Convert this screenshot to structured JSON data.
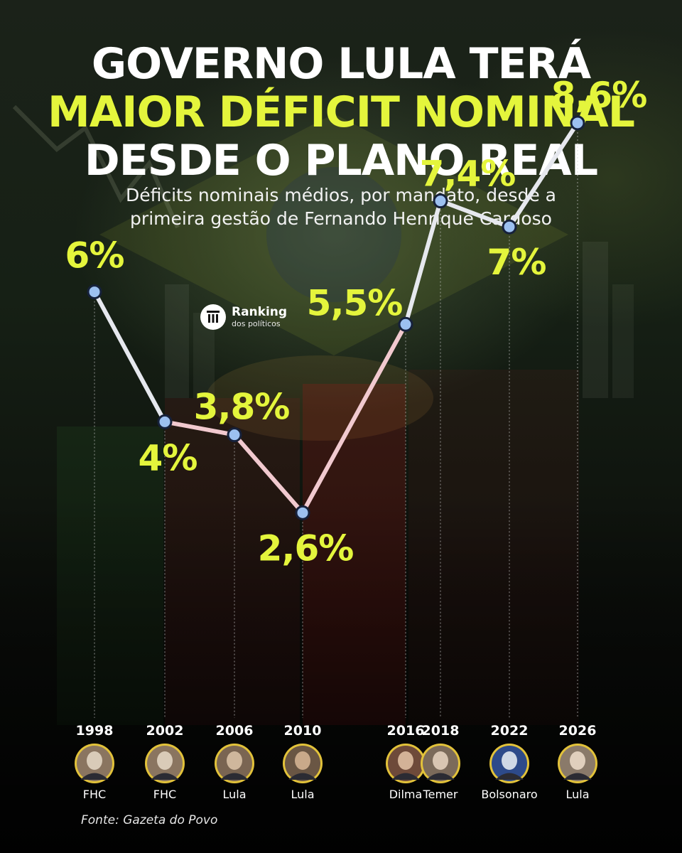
{
  "header": {
    "title_line1": "GOVERNO LULA TERÁ",
    "title_line2": "MAIOR DÉFICIT NOMINAL",
    "title_line3": "DESDE O PLANO REAL",
    "subtitle_line1": "Déficits  nominais médios, por mandato, desde a",
    "subtitle_line2": "primeira gestão de Fernando Henrique Cardoso"
  },
  "logo": {
    "name": "Ranking",
    "tagline": "dos políticos",
    "icon": "columns-icon"
  },
  "source": "Fonte: Gazeta do Povo",
  "colors": {
    "accent": "#e4f53c",
    "title": "#ffffff",
    "marker": "#9cc0f0",
    "avatar_ring": "#e2c23a"
  },
  "chart_data": {
    "type": "line",
    "title": "",
    "xlabel": "",
    "ylabel": "",
    "x": [
      1998,
      2002,
      2006,
      2010,
      2016,
      2018,
      2022,
      2026
    ],
    "categories": [
      "1998",
      "2002",
      "2006",
      "2010",
      "2016",
      "2018",
      "2022",
      "2026"
    ],
    "values": [
      6,
      4,
      3.8,
      2.6,
      5.5,
      7.4,
      7,
      8.6
    ],
    "value_labels": [
      "6%",
      "4%",
      "3,8%",
      "2,6%",
      "5,5%",
      "7,4%",
      "7%",
      "8,6%"
    ],
    "presidents": [
      "FHC",
      "FHC",
      "Lula",
      "Lula",
      "Dilma",
      "Temer",
      "Bolsonaro",
      "Lula"
    ],
    "ylim": [
      0,
      10
    ],
    "grid": false,
    "legend": "none"
  }
}
